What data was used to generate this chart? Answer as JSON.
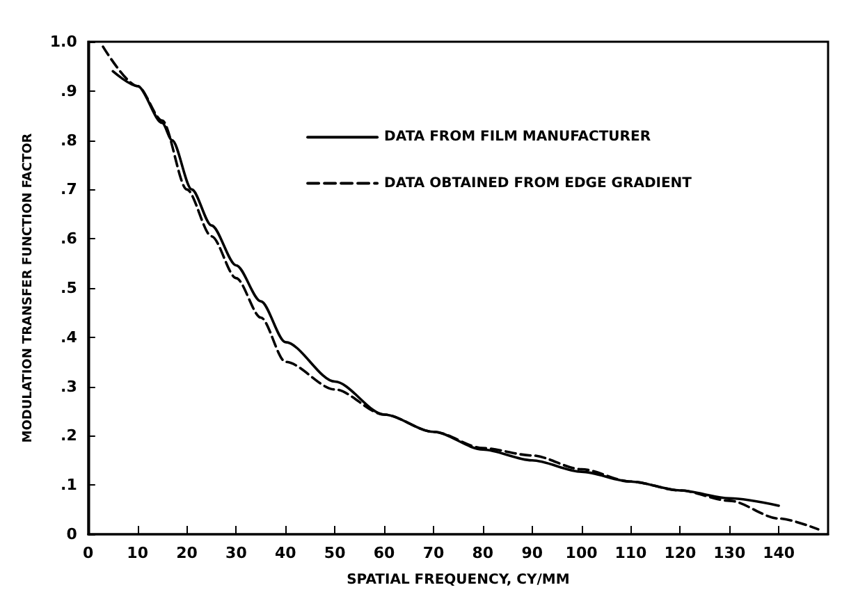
{
  "chart_data": {
    "type": "line",
    "xlabel": "SPATIAL FREQUENCY, CY/MM",
    "ylabel": "MODULATION TRANSFER FUNCTION FACTOR",
    "xlim": [
      0,
      150
    ],
    "xticks": [
      0,
      10,
      20,
      30,
      40,
      50,
      60,
      70,
      80,
      90,
      100,
      110,
      120,
      130,
      140
    ],
    "ylim": [
      0,
      1
    ],
    "yticks": [
      0,
      {
        "value": 0.1,
        "label": ".1"
      },
      {
        "value": 0.2,
        "label": ".2"
      },
      {
        "value": 0.3,
        "label": ".3"
      },
      {
        "value": 0.4,
        "label": ".4"
      },
      {
        "value": 0.5,
        "label": ".5"
      },
      {
        "value": 0.6,
        "label": ".6"
      },
      {
        "value": 0.7,
        "label": ".7"
      },
      {
        "value": 0.8,
        "label": ".8"
      },
      {
        "value": 0.9,
        "label": ".9"
      },
      {
        "value": 1,
        "label": "1.0"
      }
    ],
    "grid": false,
    "legend": "top right",
    "marker": "none",
    "series": [
      {
        "name": "DATA FROM FILM MANUFACTURER",
        "color": "#000000",
        "line_style": "solid",
        "x": [
          5,
          10,
          15,
          17,
          21,
          25,
          30,
          35,
          40,
          50,
          60,
          70,
          80,
          90,
          100,
          110,
          120,
          130,
          140
        ],
        "values": [
          0.94,
          0.91,
          0.835,
          0.8,
          0.7,
          0.627,
          0.546,
          0.473,
          0.39,
          0.31,
          0.243,
          0.208,
          0.172,
          0.15,
          0.127,
          0.107,
          0.089,
          0.073,
          0.058
        ]
      },
      {
        "name": "DATA OBTAINED FROM EDGE GRADIENT",
        "color": "#000000",
        "line_style": "dashed",
        "x": [
          3,
          10,
          15,
          20,
          25,
          30,
          35,
          40,
          50,
          60,
          70,
          80,
          90,
          100,
          110,
          120,
          130,
          140,
          148
        ],
        "values": [
          0.99,
          0.91,
          0.84,
          0.7,
          0.605,
          0.52,
          0.44,
          0.35,
          0.294,
          0.243,
          0.208,
          0.175,
          0.16,
          0.132,
          0.107,
          0.089,
          0.068,
          0.032,
          0.01
        ]
      }
    ]
  }
}
